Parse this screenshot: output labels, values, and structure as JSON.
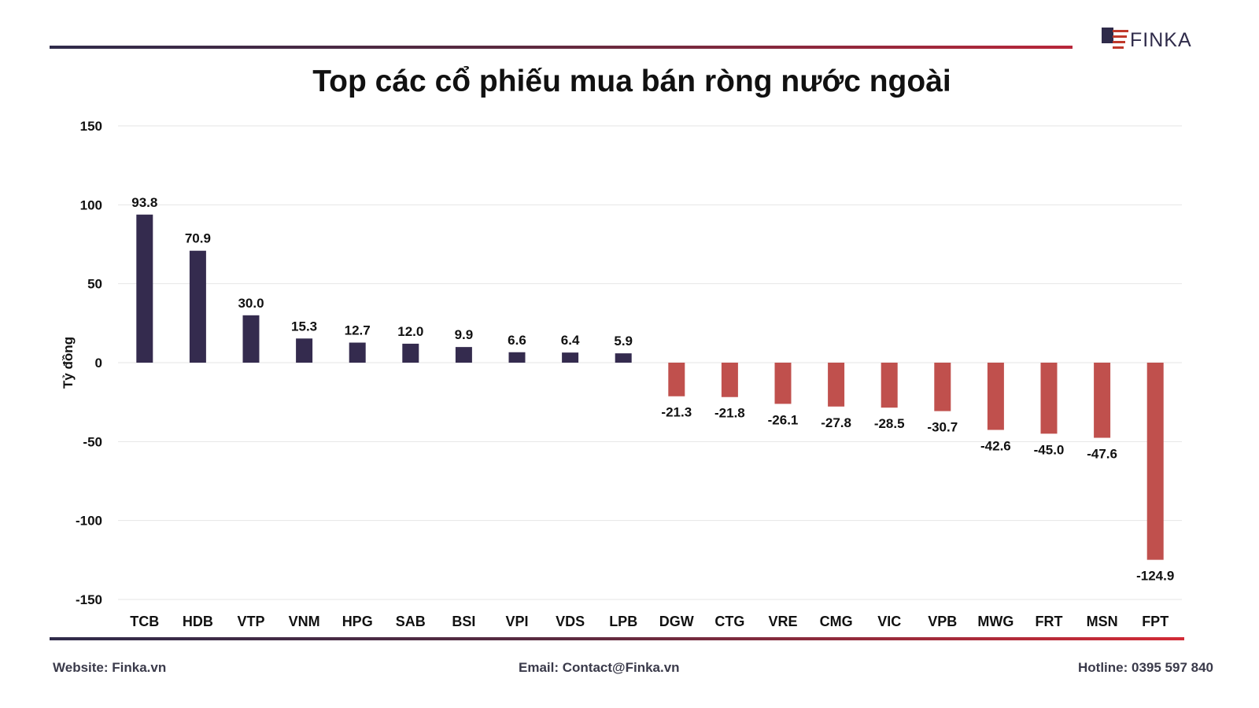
{
  "logo": {
    "text": "FINKA"
  },
  "title": "Top các cổ phiếu mua bán ròng nước ngoài",
  "footer": {
    "website": "Website: Finka.vn",
    "email": "Email: Contact@Finka.vn",
    "hotline": "Hotline: 0395 597 840"
  },
  "colors": {
    "positive": "#342b4e",
    "negative": "#c0504d",
    "grid": "#e6e6e6",
    "text": "#111111"
  },
  "chart_data": {
    "type": "bar",
    "title": "Top các cổ phiếu mua bán ròng nước ngoài",
    "xlabel": "",
    "ylabel": "Tỷ đồng",
    "ylim": [
      -150,
      150
    ],
    "yticks": [
      150,
      100,
      50,
      0,
      -50,
      -100,
      -150
    ],
    "grid": true,
    "legend": "none",
    "categories": [
      "TCB",
      "HDB",
      "VTP",
      "VNM",
      "HPG",
      "SAB",
      "BSI",
      "VPI",
      "VDS",
      "LPB",
      "DGW",
      "CTG",
      "VRE",
      "CMG",
      "VIC",
      "VPB",
      "MWG",
      "FRT",
      "MSN",
      "FPT"
    ],
    "values": [
      93.8,
      70.9,
      30.0,
      15.3,
      12.7,
      12.0,
      9.9,
      6.6,
      6.4,
      5.9,
      -21.3,
      -21.8,
      -26.1,
      -27.8,
      -28.5,
      -30.7,
      -42.6,
      -45.0,
      -47.6,
      -124.9
    ],
    "data_labels": [
      "93.8",
      "70.9",
      "30.0",
      "15.3",
      "12.7",
      "12.0",
      "9.9",
      "6.6",
      "6.4",
      "5.9",
      "-21.3",
      "-21.8",
      "-26.1",
      "-27.8",
      "-28.5",
      "-30.7",
      "-42.6",
      "-45.0",
      "-47.6",
      "-124.9"
    ]
  }
}
